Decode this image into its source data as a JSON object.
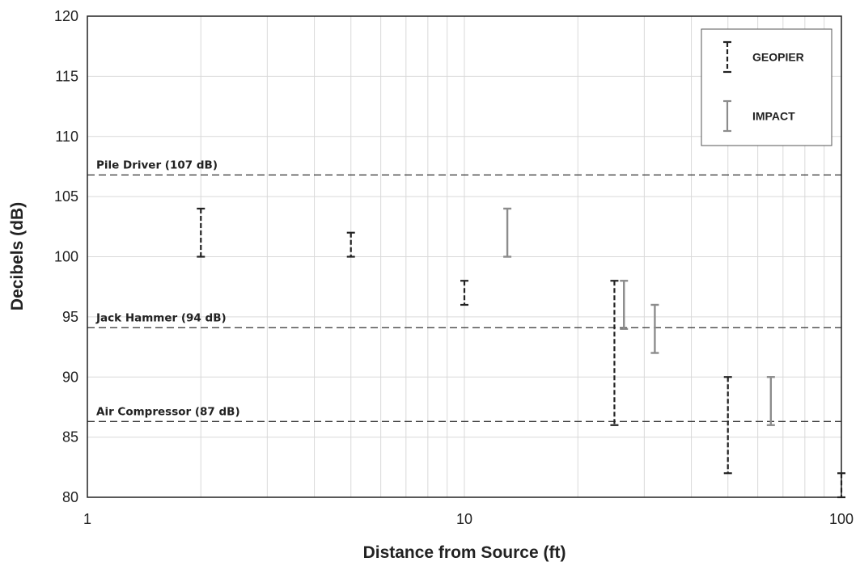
{
  "chart_data": {
    "type": "scatter",
    "title": "",
    "xlabel": "Distance from Source (ft)",
    "ylabel": "Decibels (dB)",
    "x_scale": "log",
    "xlim": [
      1,
      100
    ],
    "ylim": [
      80,
      120
    ],
    "x_ticks": [
      "1",
      "10",
      "100"
    ],
    "y_ticks": [
      "80",
      "85",
      "90",
      "95",
      "100",
      "105",
      "110",
      "115",
      "120"
    ],
    "grid": true,
    "legend_position": "top-right",
    "series": [
      {
        "name": "GEOPIER",
        "color": "#222222",
        "style": "dashed error bars",
        "points": [
          {
            "x": 2,
            "low": 100,
            "high": 104
          },
          {
            "x": 5,
            "low": 100,
            "high": 102
          },
          {
            "x": 10,
            "low": 96,
            "high": 98
          },
          {
            "x": 25,
            "low": 86,
            "high": 98
          },
          {
            "x": 50,
            "low": 82,
            "high": 90
          },
          {
            "x": 100,
            "low": 80,
            "high": 82
          }
        ]
      },
      {
        "name": "IMPACT",
        "color": "#8c8c8c",
        "style": "solid error bars",
        "points": [
          {
            "x": 13,
            "low": 100,
            "high": 104
          },
          {
            "x": 26.5,
            "low": 94,
            "high": 98
          },
          {
            "x": 32,
            "low": 92,
            "high": 96
          },
          {
            "x": 65,
            "low": 86,
            "high": 90
          }
        ]
      }
    ],
    "reference_lines": [
      {
        "label": "Pile Driver (107 dB)",
        "y": 106.8
      },
      {
        "label": "Jack Hammer (94 dB)",
        "y": 94.1
      },
      {
        "label": "Air Compressor (87 dB)",
        "y": 86.3
      }
    ]
  }
}
